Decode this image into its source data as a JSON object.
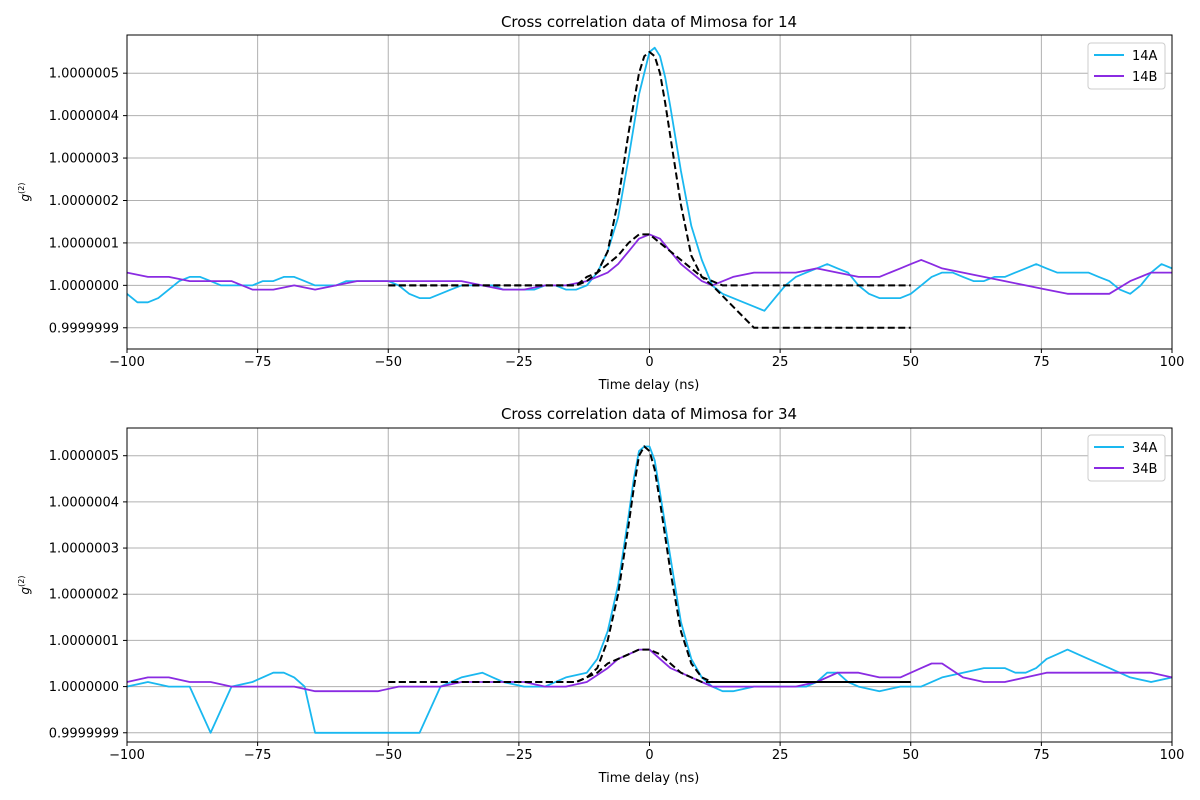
{
  "colors": {
    "series_a": "#1ab8f0",
    "series_b": "#8a2be2",
    "fit": "#000000",
    "grid": "#b0b0b0"
  },
  "chart_data": [
    {
      "type": "line",
      "title": "Cross correlation data of Mimosa for 14",
      "xlabel": "Time delay (ns)",
      "ylabel": "g",
      "ylabel_sup": "(2)",
      "xlim": [
        -100,
        100
      ],
      "ylim": [
        0.99999985,
        1.00000059
      ],
      "xticks": [
        -100,
        -75,
        -50,
        -25,
        0,
        25,
        50,
        75,
        100
      ],
      "xtick_labels": [
        "−100",
        "−75",
        "−50",
        "−25",
        "0",
        "25",
        "50",
        "75",
        "100"
      ],
      "yticks": [
        0.9999999,
        1.0,
        1.0000001,
        1.0000002,
        1.0000003,
        1.0000004,
        1.0000005
      ],
      "ytick_labels": [
        "0.9999999",
        "1.0000000",
        "1.0000001",
        "1.0000002",
        "1.0000003",
        "1.0000004",
        "1.0000005"
      ],
      "grid": true,
      "legend_position": "upper right",
      "legend_entries": [
        "14A",
        "14B"
      ],
      "series": [
        {
          "name": "14A",
          "color": "#1ab8f0",
          "x": [
            -100,
            -98,
            -96,
            -94,
            -92,
            -90,
            -88,
            -86,
            -84,
            -82,
            -80,
            -78,
            -76,
            -74,
            -72,
            -70,
            -68,
            -66,
            -64,
            -62,
            -60,
            -58,
            -56,
            -54,
            -52,
            -50,
            -48,
            -46,
            -44,
            -42,
            -40,
            -38,
            -36,
            -34,
            -32,
            -30,
            -28,
            -26,
            -24,
            -22,
            -20,
            -18,
            -16,
            -14,
            -12,
            -10,
            -8,
            -6,
            -4,
            -2,
            0,
            1,
            2,
            3,
            4,
            6,
            8,
            10,
            12,
            14,
            16,
            18,
            20,
            22,
            24,
            26,
            28,
            30,
            32,
            34,
            36,
            38,
            40,
            42,
            44,
            46,
            48,
            50,
            52,
            54,
            56,
            58,
            60,
            62,
            64,
            66,
            68,
            70,
            72,
            74,
            76,
            78,
            80,
            82,
            84,
            86,
            88,
            90,
            92,
            94,
            96,
            98,
            100
          ],
          "y": [
            0.99999998,
            0.99999996,
            0.99999996,
            0.99999997,
            0.99999999,
            1.00000001,
            1.00000002,
            1.00000002,
            1.00000001,
            1.0,
            1.0,
            1.0,
            1.0,
            1.00000001,
            1.00000001,
            1.00000002,
            1.00000002,
            1.00000001,
            1.0,
            1.0,
            1.0,
            1.00000001,
            1.00000001,
            1.00000001,
            1.00000001,
            1.00000001,
            1.0,
            0.99999998,
            0.99999997,
            0.99999997,
            0.99999998,
            0.99999999,
            1.0,
            1.0,
            1.0,
            1.0,
            0.99999999,
            0.99999999,
            0.99999999,
            0.99999999,
            1.0,
            1.0,
            0.99999999,
            0.99999999,
            1.0,
            1.00000003,
            1.00000008,
            1.00000016,
            1.0000003,
            1.00000045,
            1.00000055,
            1.00000056,
            1.00000054,
            1.00000049,
            1.00000042,
            1.00000027,
            1.00000014,
            1.00000006,
            1.0,
            0.99999998,
            0.99999997,
            0.99999996,
            0.99999995,
            0.99999994,
            0.99999997,
            1.0,
            1.00000002,
            1.00000003,
            1.00000004,
            1.00000005,
            1.00000004,
            1.00000003,
            1.0,
            0.99999998,
            0.99999997,
            0.99999997,
            0.99999997,
            0.99999998,
            1.0,
            1.00000002,
            1.00000003,
            1.00000003,
            1.00000002,
            1.00000001,
            1.00000001,
            1.00000002,
            1.00000002,
            1.00000003,
            1.00000004,
            1.00000005,
            1.00000004,
            1.00000003,
            1.00000003,
            1.00000003,
            1.00000003,
            1.00000002,
            1.00000001,
            0.99999999,
            0.99999998,
            1.0,
            1.00000003,
            1.00000005,
            1.00000004
          ]
        },
        {
          "name": "14B",
          "color": "#8a2be2",
          "x": [
            -100,
            -96,
            -92,
            -88,
            -84,
            -80,
            -76,
            -72,
            -68,
            -64,
            -60,
            -56,
            -52,
            -48,
            -44,
            -40,
            -36,
            -32,
            -28,
            -24,
            -20,
            -16,
            -12,
            -10,
            -8,
            -6,
            -4,
            -2,
            0,
            2,
            4,
            6,
            8,
            10,
            12,
            16,
            20,
            24,
            28,
            32,
            36,
            40,
            44,
            48,
            50,
            52,
            54,
            56,
            60,
            64,
            68,
            72,
            76,
            80,
            84,
            88,
            92,
            96,
            100
          ],
          "y": [
            1.00000003,
            1.00000002,
            1.00000002,
            1.00000001,
            1.00000001,
            1.00000001,
            0.99999999,
            0.99999999,
            1.0,
            0.99999999,
            1.0,
            1.00000001,
            1.00000001,
            1.00000001,
            1.00000001,
            1.00000001,
            1.00000001,
            1.0,
            0.99999999,
            0.99999999,
            1.0,
            1.0,
            1.00000001,
            1.00000002,
            1.00000003,
            1.00000005,
            1.00000008,
            1.00000011,
            1.00000012,
            1.00000011,
            1.00000008,
            1.00000005,
            1.00000003,
            1.00000001,
            1.0,
            1.00000002,
            1.00000003,
            1.00000003,
            1.00000003,
            1.00000004,
            1.00000003,
            1.00000002,
            1.00000002,
            1.00000004,
            1.00000005,
            1.00000006,
            1.00000005,
            1.00000004,
            1.00000003,
            1.00000002,
            1.00000001,
            1.0,
            0.99999999,
            0.99999998,
            0.99999998,
            0.99999998,
            1.00000001,
            1.00000003,
            1.00000003
          ]
        }
      ],
      "fits": [
        {
          "x": [
            -50,
            -40,
            -30,
            -20,
            -14,
            -12,
            -10,
            -8,
            -6,
            -4,
            -2,
            -1,
            0,
            1,
            2,
            3,
            4,
            6,
            8,
            10,
            12,
            20,
            30,
            40,
            50
          ],
          "y": [
            1.0,
            1.0,
            1.0,
            1.0,
            1.0,
            1.00000001,
            1.00000003,
            1.00000008,
            1.0000002,
            1.00000036,
            1.0000005,
            1.00000054,
            1.00000055,
            1.00000054,
            1.0000005,
            1.00000043,
            1.00000035,
            1.00000019,
            1.00000007,
            1.00000002,
            1.0,
            0.9999999,
            0.9999999,
            0.9999999,
            0.9999999
          ]
        },
        {
          "x": [
            -50,
            -40,
            -30,
            -20,
            -14,
            -12,
            -10,
            -8,
            -6,
            -4,
            -2,
            0,
            2,
            4,
            6,
            8,
            10,
            14,
            20,
            30,
            40,
            50
          ],
          "y": [
            1.0,
            1.0,
            1.0,
            1.0,
            1.0,
            1.00000002,
            1.00000003,
            1.00000005,
            1.00000007,
            1.0000001,
            1.00000012,
            1.00000012,
            1.0000001,
            1.00000008,
            1.00000006,
            1.00000004,
            1.00000002,
            1.0,
            1.0,
            1.0,
            1.0,
            1.0
          ]
        }
      ]
    },
    {
      "type": "line",
      "title": "Cross correlation data of Mimosa for 34",
      "xlabel": "Time delay (ns)",
      "ylabel": "g",
      "ylabel_sup": "(2)",
      "xlim": [
        -100,
        100
      ],
      "ylim": [
        0.99999988,
        1.00000056
      ],
      "xticks": [
        -100,
        -75,
        -50,
        -25,
        0,
        25,
        50,
        75,
        100
      ],
      "xtick_labels": [
        "−100",
        "−75",
        "−50",
        "−25",
        "0",
        "25",
        "50",
        "75",
        "100"
      ],
      "yticks": [
        0.9999999,
        1.0,
        1.0000001,
        1.0000002,
        1.0000003,
        1.0000004,
        1.0000005
      ],
      "ytick_labels": [
        "0.9999999",
        "1.0000000",
        "1.0000001",
        "1.0000002",
        "1.0000003",
        "1.0000004",
        "1.0000005"
      ],
      "grid": true,
      "legend_position": "upper right",
      "legend_entries": [
        "34A",
        "34B"
      ],
      "series": [
        {
          "name": "34A",
          "color": "#1ab8f0",
          "x": [
            -100,
            -96,
            -92,
            -88,
            -84,
            -80,
            -76,
            -72,
            -70,
            -68,
            -66,
            -64,
            -60,
            -56,
            -52,
            -48,
            -46,
            -44,
            -40,
            -36,
            -32,
            -30,
            -28,
            -24,
            -20,
            -16,
            -12,
            -10,
            -8,
            -6,
            -4,
            -3,
            -2,
            -1,
            0,
            1,
            2,
            4,
            6,
            8,
            10,
            12,
            14,
            16,
            20,
            24,
            28,
            30,
            32,
            34,
            36,
            38,
            40,
            44,
            48,
            52,
            56,
            60,
            64,
            68,
            70,
            72,
            74,
            76,
            78,
            80,
            82,
            84,
            88,
            92,
            96,
            100
          ],
          "y": [
            1.0,
            1.00000001,
            1.0,
            1.0,
            0.9999999,
            1.0,
            1.00000001,
            1.00000003,
            1.00000003,
            1.00000002,
            1.0,
            0.9999999,
            0.9999999,
            0.9999999,
            0.9999999,
            0.9999999,
            0.9999999,
            0.9999999,
            1.0,
            1.00000002,
            1.00000003,
            1.00000002,
            1.00000001,
            1.0,
            1.0,
            1.00000002,
            1.00000003,
            1.00000006,
            1.00000012,
            1.00000022,
            1.00000037,
            1.00000045,
            1.00000051,
            1.00000052,
            1.00000052,
            1.00000049,
            1.00000042,
            1.00000028,
            1.00000014,
            1.00000006,
            1.00000002,
            1.0,
            0.99999999,
            0.99999999,
            1.0,
            1.0,
            1.0,
            1.0,
            1.00000001,
            1.00000003,
            1.00000003,
            1.00000001,
            1.0,
            0.99999999,
            1.0,
            1.0,
            1.00000002,
            1.00000003,
            1.00000004,
            1.00000004,
            1.00000003,
            1.00000003,
            1.00000004,
            1.00000006,
            1.00000007,
            1.00000008,
            1.00000007,
            1.00000006,
            1.00000004,
            1.00000002,
            1.00000001,
            1.00000002
          ]
        },
        {
          "name": "34B",
          "color": "#8a2be2",
          "x": [
            -100,
            -96,
            -92,
            -88,
            -84,
            -80,
            -76,
            -72,
            -68,
            -64,
            -60,
            -56,
            -52,
            -48,
            -44,
            -40,
            -36,
            -32,
            -28,
            -24,
            -20,
            -16,
            -12,
            -8,
            -6,
            -4,
            -2,
            0,
            2,
            4,
            6,
            8,
            10,
            12,
            16,
            20,
            24,
            28,
            32,
            36,
            38,
            40,
            44,
            48,
            52,
            54,
            56,
            60,
            64,
            68,
            72,
            76,
            80,
            84,
            88,
            92,
            96,
            100
          ],
          "y": [
            1.00000001,
            1.00000002,
            1.00000002,
            1.00000001,
            1.00000001,
            1.0,
            1.0,
            1.0,
            1.0,
            0.99999999,
            0.99999999,
            0.99999999,
            0.99999999,
            1.0,
            1.0,
            1.0,
            1.00000001,
            1.00000001,
            1.00000001,
            1.00000001,
            1.0,
            1.0,
            1.00000001,
            1.00000004,
            1.00000006,
            1.00000007,
            1.00000008,
            1.00000008,
            1.00000006,
            1.00000004,
            1.00000003,
            1.00000002,
            1.00000001,
            1.0,
            1.0,
            1.0,
            1.0,
            1.0,
            1.00000001,
            1.00000003,
            1.00000003,
            1.00000003,
            1.00000002,
            1.00000002,
            1.00000004,
            1.00000005,
            1.00000005,
            1.00000002,
            1.00000001,
            1.00000001,
            1.00000002,
            1.00000003,
            1.00000003,
            1.00000003,
            1.00000003,
            1.00000003,
            1.00000003,
            1.00000002
          ]
        }
      ],
      "fits": [
        {
          "x": [
            -50,
            -40,
            -30,
            -20,
            -14,
            -12,
            -10,
            -8,
            -6,
            -4,
            -3,
            -2,
            -1,
            0,
            1,
            2,
            4,
            6,
            8,
            10,
            12,
            20,
            30,
            40,
            50
          ],
          "y": [
            1.00000001,
            1.00000001,
            1.00000001,
            1.00000001,
            1.00000001,
            1.00000002,
            1.00000004,
            1.0000001,
            1.0000002,
            1.00000035,
            1.00000043,
            1.0000005,
            1.00000052,
            1.00000051,
            1.00000047,
            1.0000004,
            1.00000025,
            1.00000012,
            1.00000005,
            1.00000002,
            1.00000001,
            1.00000001,
            1.00000001,
            1.00000001,
            1.00000001
          ]
        },
        {
          "x": [
            -50,
            -40,
            -30,
            -20,
            -14,
            -12,
            -10,
            -8,
            -6,
            -4,
            -2,
            0,
            2,
            4,
            6,
            8,
            10,
            14,
            20,
            30,
            40,
            50
          ],
          "y": [
            1.00000001,
            1.00000001,
            1.00000001,
            1.00000001,
            1.00000001,
            1.00000002,
            1.00000003,
            1.00000005,
            1.00000006,
            1.00000007,
            1.00000008,
            1.00000008,
            1.00000007,
            1.00000005,
            1.00000003,
            1.00000002,
            1.00000001,
            1.00000001,
            1.00000001,
            1.00000001,
            1.00000001,
            1.00000001
          ]
        }
      ]
    }
  ]
}
